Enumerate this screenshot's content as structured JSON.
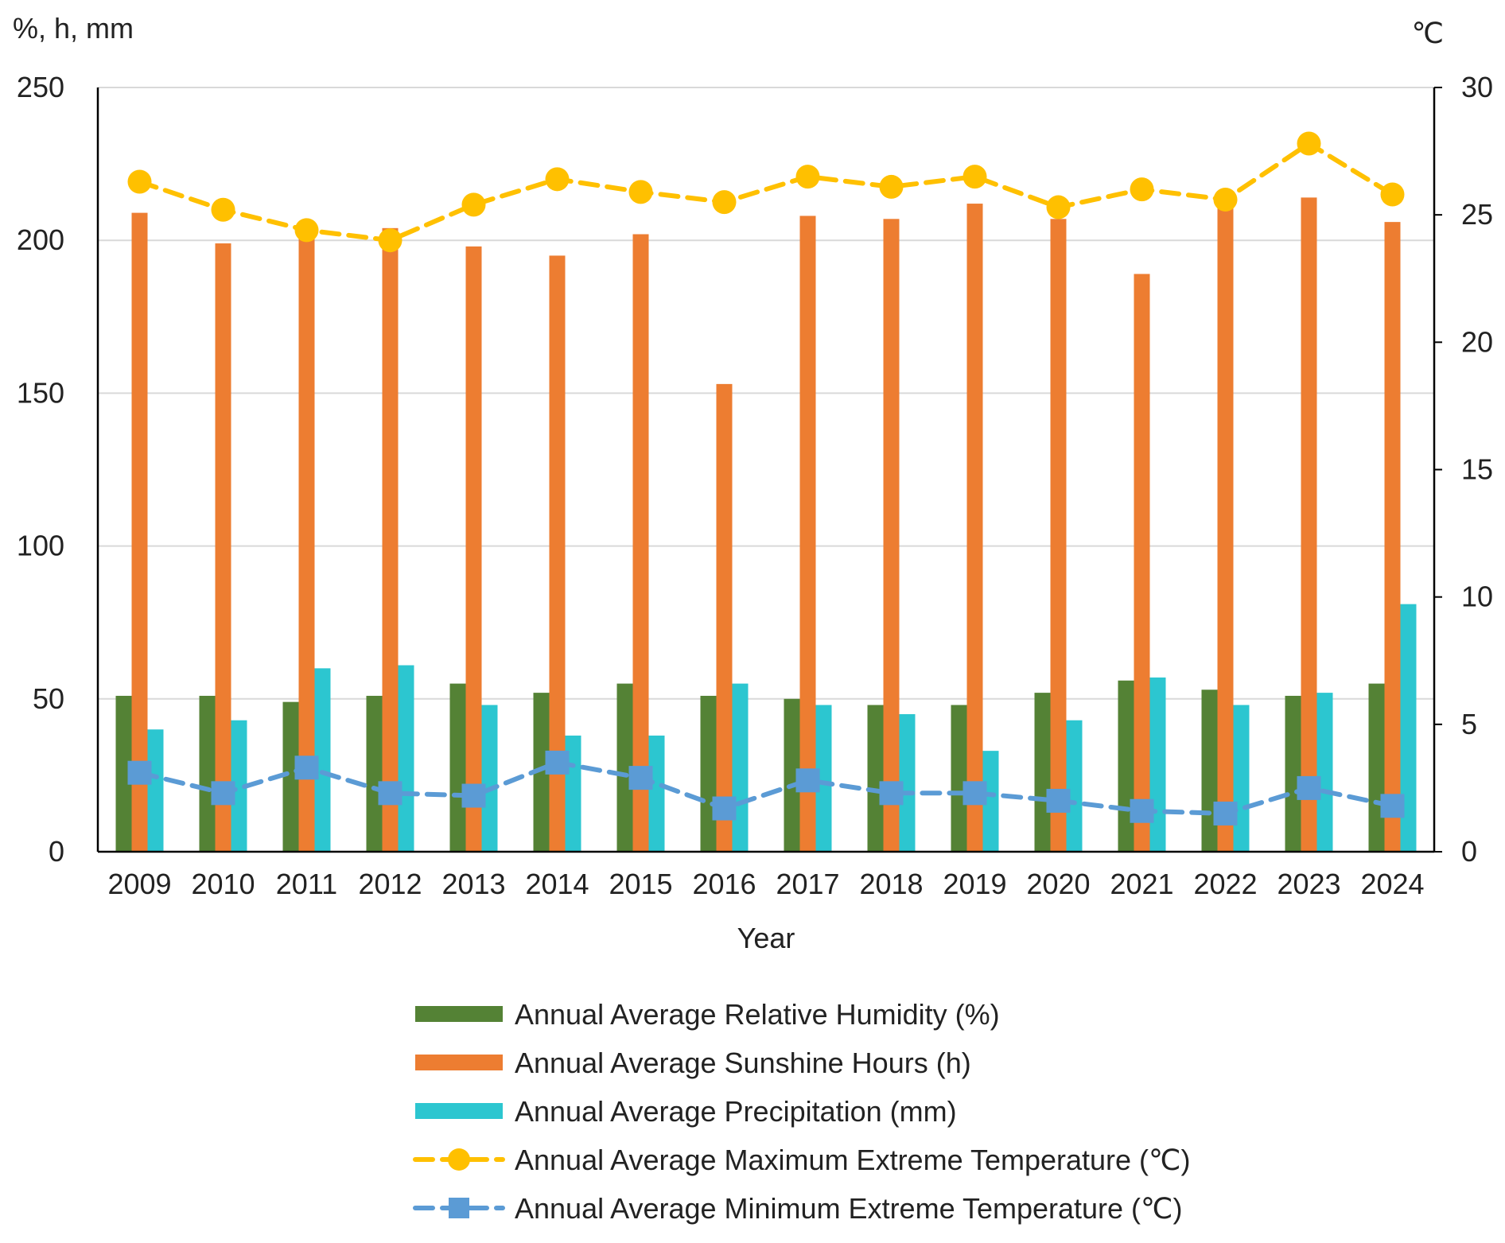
{
  "chart_data": {
    "type": "bar",
    "xlabel": "Year",
    "ylabel_left": "%, h, mm",
    "ylabel_right": "℃",
    "ylim_left": [
      0,
      250
    ],
    "ylim_right": [
      0,
      30
    ],
    "yticks_left": [
      "0",
      "50",
      "100",
      "150",
      "200",
      "250"
    ],
    "yticks_right": [
      "0",
      "5",
      "10",
      "15",
      "20",
      "25",
      "30"
    ],
    "categories": [
      "2009",
      "2010",
      "2011",
      "2012",
      "2013",
      "2014",
      "2015",
      "2016",
      "2017",
      "2018",
      "2019",
      "2020",
      "2021",
      "2022",
      "2023",
      "2024"
    ],
    "gridlines": true,
    "legend_position": "bottom",
    "series": [
      {
        "name": "Annual Average Relative Humidity (%)",
        "kind": "bar",
        "axis": "left",
        "color": "#548235",
        "values": [
          51,
          51,
          49,
          51,
          55,
          52,
          55,
          51,
          50,
          48,
          48,
          52,
          56,
          53,
          51,
          55
        ]
      },
      {
        "name": "Annual Average Sunshine Hours (h)",
        "kind": "bar",
        "axis": "left",
        "color": "#ED7D31",
        "values": [
          209,
          199,
          204,
          204,
          198,
          195,
          202,
          153,
          208,
          207,
          212,
          207,
          189,
          212,
          214,
          206
        ]
      },
      {
        "name": "Annual Average Precipitation (mm)",
        "kind": "bar",
        "axis": "left",
        "color": "#2CC6D0",
        "values": [
          40,
          43,
          60,
          61,
          48,
          38,
          38,
          55,
          48,
          45,
          33,
          43,
          57,
          48,
          52,
          81
        ]
      },
      {
        "name": "Annual Average Maximum Extreme Temperature (℃)",
        "kind": "line",
        "axis": "right",
        "marker": "circle",
        "color": "#FFC000",
        "values": [
          26.3,
          25.2,
          24.4,
          24.0,
          25.4,
          26.4,
          25.9,
          25.5,
          26.5,
          26.1,
          26.5,
          25.3,
          26.0,
          25.6,
          27.8,
          25.8
        ]
      },
      {
        "name": "Annual Average Minimum Extreme Temperature (℃)",
        "kind": "line",
        "axis": "right",
        "marker": "square",
        "color": "#5B9BD5",
        "values": [
          3.1,
          2.3,
          3.3,
          2.3,
          2.2,
          3.5,
          2.9,
          1.7,
          2.8,
          2.3,
          2.3,
          2.0,
          1.6,
          1.5,
          2.5,
          1.8
        ]
      }
    ]
  }
}
